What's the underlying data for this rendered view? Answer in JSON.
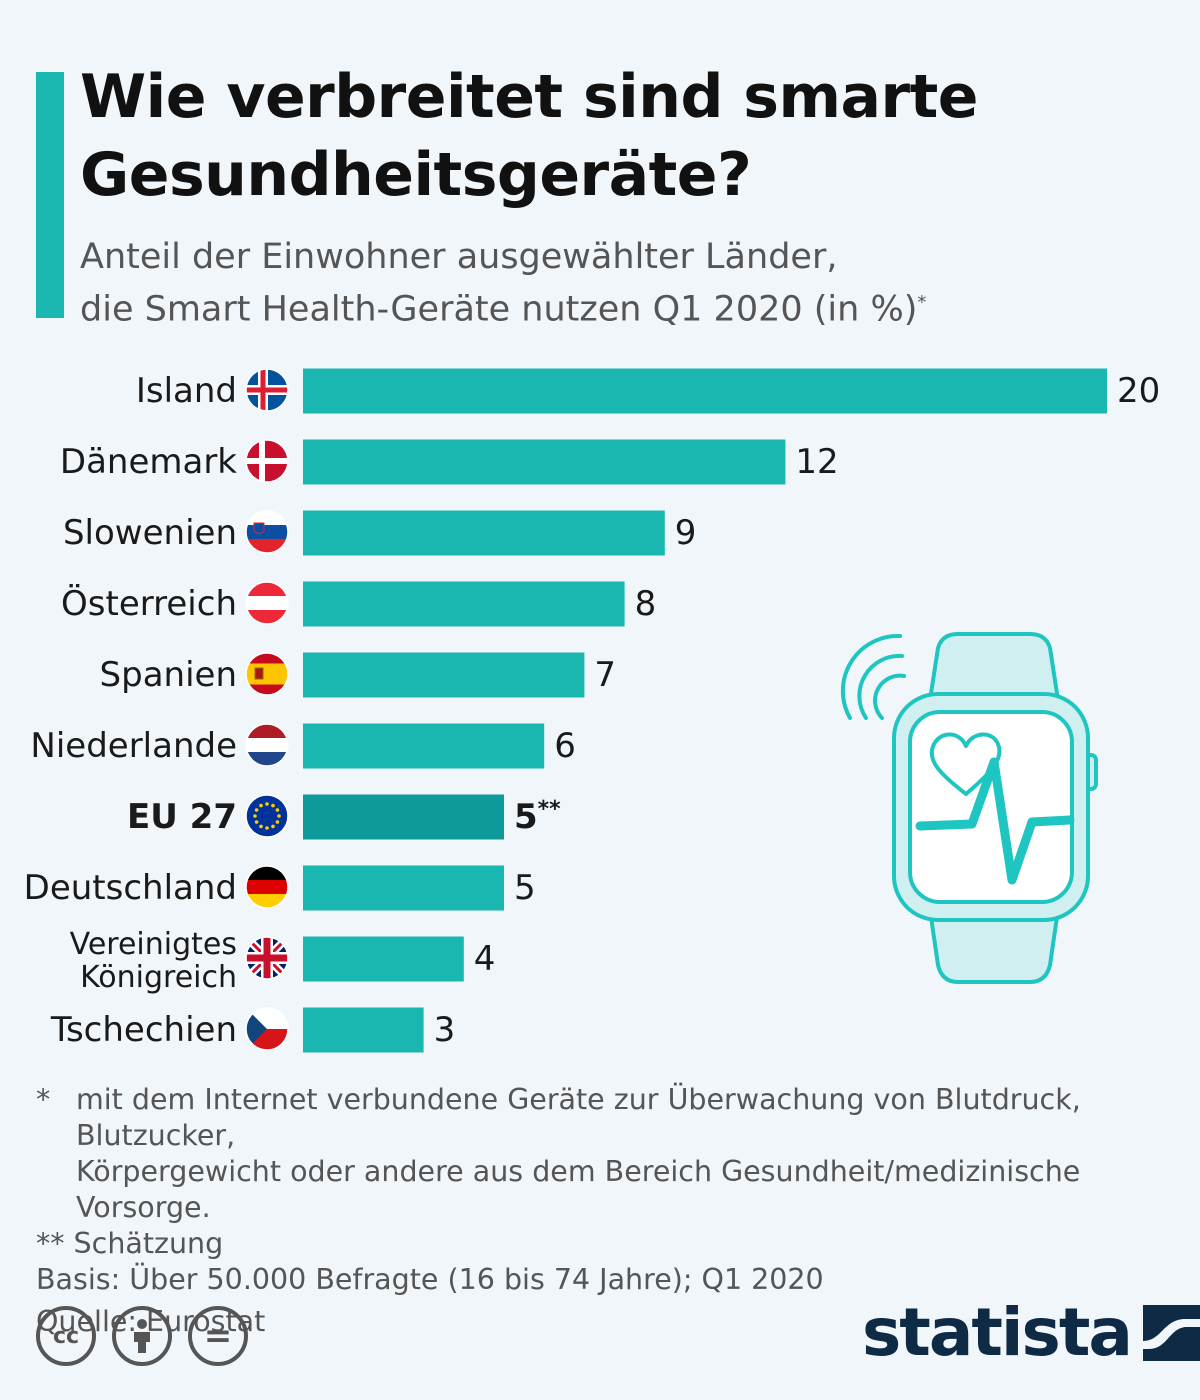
{
  "title": "Wie verbreitet sind smarte Gesundheitsgeräte?",
  "subtitle_line1": "Anteil der Einwohner ausgewählter Länder,",
  "subtitle_line2": "die Smart Health-Geräte nutzen Q1 2020 (in %)",
  "subtitle_mark": "*",
  "colors": {
    "bar": "#1ab7b0",
    "bar_highlight": "#0e9a9a",
    "accent": "#1ab7b0",
    "background": "#f1f6fa",
    "brand": "#0f2a45",
    "watch": "#1fc5c0"
  },
  "chart_data": {
    "type": "bar",
    "orientation": "horizontal",
    "categories": [
      "Island",
      "Dänemark",
      "Slowenien",
      "Österreich",
      "Spanien",
      "Niederlande",
      "EU 27",
      "Deutschland",
      "Vereinigtes Königreich",
      "Tschechien"
    ],
    "values": [
      20,
      12,
      9,
      8,
      7,
      6,
      5,
      5,
      4,
      3
    ],
    "value_labels": [
      "20",
      "12",
      "9",
      "8",
      "7",
      "6",
      "5**",
      "5",
      "4",
      "3"
    ],
    "highlight": "EU 27",
    "flags": [
      "flag-iceland",
      "flag-denmark",
      "flag-slovenia",
      "flag-austria",
      "flag-spain",
      "flag-netherlands",
      "flag-eu",
      "flag-germany",
      "flag-uk",
      "flag-czechia"
    ],
    "xlim": [
      0,
      20
    ],
    "grid": false,
    "legend": "none"
  },
  "footnotes": {
    "mark1": "*",
    "note1_line1": "mit dem Internet verbundene Geräte zur Überwachung von Blutdruck, Blutzucker,",
    "note1_line2": "Körpergewicht oder andere aus dem Bereich Gesundheit/medizinische Vorsorge.",
    "note2": "** Schätzung",
    "basis": "Basis: Über 50.000 Befragte (16 bis 74 Jahre); Q1 2020",
    "source": "Quelle: Eurostat"
  },
  "license": {
    "cc": "cc",
    "equals": "="
  },
  "brand": "statista",
  "illustration": "smartwatch-heart-icon"
}
